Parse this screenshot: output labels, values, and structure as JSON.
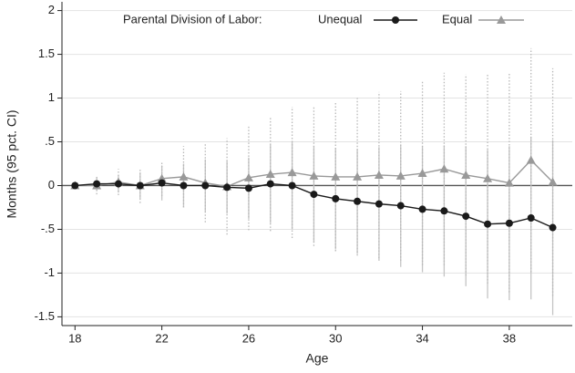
{
  "chart_data": {
    "type": "line",
    "x_label": "Age",
    "y_label": "Months (95 pct. CI)",
    "legend_title": "Parental Division of Labor:",
    "x": [
      18,
      19,
      20,
      21,
      22,
      23,
      24,
      25,
      26,
      27,
      28,
      29,
      30,
      31,
      32,
      33,
      34,
      35,
      36,
      37,
      38,
      39,
      40
    ],
    "series": [
      {
        "name": "Unequal",
        "color": "#1a1a1a",
        "marker": "circle",
        "ci_color": "#c4c4c4",
        "ci_style": "solid",
        "values": [
          0,
          0.02,
          0.02,
          0,
          0.03,
          0,
          0,
          -0.02,
          -0.03,
          0.02,
          0,
          -0.1,
          -0.15,
          -0.18,
          -0.21,
          -0.23,
          -0.27,
          -0.29,
          -0.35,
          -0.44,
          -0.43,
          -0.37,
          -0.48
        ],
        "errors": [
          0,
          0.08,
          0.1,
          0.15,
          0.2,
          0.25,
          0.3,
          0.3,
          0.35,
          0.45,
          0.5,
          0.55,
          0.58,
          0.6,
          0.65,
          0.7,
          0.72,
          0.75,
          0.8,
          0.85,
          0.88,
          0.93,
          1.0
        ]
      },
      {
        "name": "Equal",
        "color": "#999999",
        "marker": "triangle",
        "ci_color": "#b8b8b8",
        "ci_style": "dotted",
        "values": [
          0,
          0,
          0.04,
          0,
          0.08,
          0.1,
          0.03,
          -0.01,
          0.09,
          0.13,
          0.15,
          0.11,
          0.1,
          0.1,
          0.12,
          0.11,
          0.14,
          0.19,
          0.12,
          0.08,
          0.03,
          0.29,
          0.04
        ],
        "errors": [
          0,
          0.1,
          0.15,
          0.2,
          0.2,
          0.35,
          0.45,
          0.55,
          0.6,
          0.65,
          0.75,
          0.8,
          0.85,
          0.9,
          0.95,
          0.97,
          1.05,
          1.1,
          1.15,
          1.2,
          1.25,
          1.28,
          1.3
        ]
      }
    ],
    "xlim": [
      17.4,
      40.9
    ],
    "xticks": [
      18,
      22,
      26,
      30,
      34,
      38
    ],
    "ylim": [
      -1.6,
      2.1
    ],
    "yticks": [
      -1.5,
      -1,
      {
        "value": -0.5,
        "label": "-.5"
      },
      0,
      {
        "value": 0.5,
        "label": ".5"
      },
      1,
      1.5,
      2
    ],
    "grid": true,
    "zero_line": true
  }
}
